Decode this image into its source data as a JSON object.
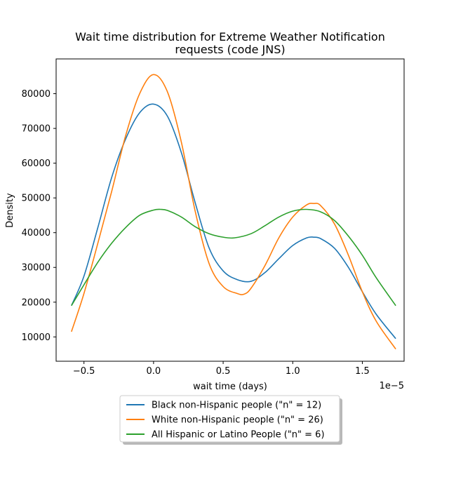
{
  "chart_data": {
    "type": "line",
    "title_line1": "Wait time distribution  for Extreme Weather Notification",
    "title_line2": "requests (code JNS)",
    "xlabel": "wait time (days)",
    "ylabel": "Density",
    "x_offset_label": "1e−5",
    "xlim": [
      -7e-06,
      1.8e-05
    ],
    "ylim": [
      3000,
      90000
    ],
    "xticks": [
      -5e-06,
      0,
      5e-06,
      1e-05,
      1.5e-05
    ],
    "xtick_labels": [
      "−0.5",
      "0.0",
      "0.5",
      "1.0",
      "1.5"
    ],
    "yticks": [
      10000,
      20000,
      30000,
      40000,
      50000,
      60000,
      70000,
      80000
    ],
    "ytick_labels": [
      "10000",
      "20000",
      "30000",
      "40000",
      "50000",
      "60000",
      "70000",
      "80000"
    ],
    "grid": false,
    "legend_position": "below plot, centered",
    "series": [
      {
        "name": "Black non-Hispanic people (\"n\" = 12)",
        "color": "#1f77b4",
        "points": [
          [
            -5.9e-06,
            19000
          ],
          [
            -5e-06,
            27500
          ],
          [
            -4e-06,
            41500
          ],
          [
            -3e-06,
            56000
          ],
          [
            -2e-06,
            67000
          ],
          [
            -1e-06,
            74500
          ],
          [
            0,
            77000
          ],
          [
            1e-06,
            73500
          ],
          [
            2e-06,
            63000
          ],
          [
            3e-06,
            48500
          ],
          [
            4e-06,
            35500
          ],
          [
            5e-06,
            29000
          ],
          [
            6e-06,
            26500
          ],
          [
            7e-06,
            26000
          ],
          [
            8e-06,
            28500
          ],
          [
            9e-06,
            32500
          ],
          [
            1e-05,
            36300
          ],
          [
            1.1e-05,
            38500
          ],
          [
            1.15e-05,
            38700
          ],
          [
            1.2e-05,
            38300
          ],
          [
            1.3e-05,
            35500
          ],
          [
            1.4e-05,
            30000
          ],
          [
            1.5e-05,
            23000
          ],
          [
            1.6e-05,
            16500
          ],
          [
            1.74e-05,
            9500
          ]
        ]
      },
      {
        "name": "White non-Hispanic people (\"n\" = 26)",
        "color": "#ff7f0e",
        "points": [
          [
            -5.9e-06,
            11500
          ],
          [
            -5e-06,
            22500
          ],
          [
            -4e-06,
            37000
          ],
          [
            -3e-06,
            52000
          ],
          [
            -2e-06,
            68000
          ],
          [
            -1e-06,
            80000
          ],
          [
            0,
            85500
          ],
          [
            1e-06,
            80500
          ],
          [
            2e-06,
            66000
          ],
          [
            3e-06,
            46000
          ],
          [
            4e-06,
            31000
          ],
          [
            5e-06,
            24500
          ],
          [
            6e-06,
            22500
          ],
          [
            6.5e-06,
            22300
          ],
          [
            7e-06,
            24000
          ],
          [
            8e-06,
            30500
          ],
          [
            9e-06,
            38500
          ],
          [
            1e-05,
            44500
          ],
          [
            1.1e-05,
            48000
          ],
          [
            1.15e-05,
            48400
          ],
          [
            1.2e-05,
            47800
          ],
          [
            1.3e-05,
            42500
          ],
          [
            1.4e-05,
            33500
          ],
          [
            1.5e-05,
            23000
          ],
          [
            1.6e-05,
            14500
          ],
          [
            1.74e-05,
            6500
          ]
        ]
      },
      {
        "name": "All Hispanic or Latino People (\"n\" = 6)",
        "color": "#2ca02c",
        "points": [
          [
            -5.9e-06,
            19000
          ],
          [
            -5e-06,
            25000
          ],
          [
            -4e-06,
            31500
          ],
          [
            -3e-06,
            37000
          ],
          [
            -2e-06,
            41500
          ],
          [
            -1e-06,
            45000
          ],
          [
            0,
            46500
          ],
          [
            5e-07,
            46700
          ],
          [
            1e-06,
            46400
          ],
          [
            2e-06,
            44500
          ],
          [
            3e-06,
            41700
          ],
          [
            4e-06,
            39700
          ],
          [
            5e-06,
            38700
          ],
          [
            5.8e-06,
            38500
          ],
          [
            7e-06,
            39700
          ],
          [
            8e-06,
            42000
          ],
          [
            9e-06,
            44500
          ],
          [
            1e-05,
            46200
          ],
          [
            1.1e-05,
            46700
          ],
          [
            1.2e-05,
            46000
          ],
          [
            1.3e-05,
            43500
          ],
          [
            1.4e-05,
            39000
          ],
          [
            1.5e-05,
            33500
          ],
          [
            1.6e-05,
            27000
          ],
          [
            1.74e-05,
            19000
          ]
        ]
      }
    ]
  }
}
